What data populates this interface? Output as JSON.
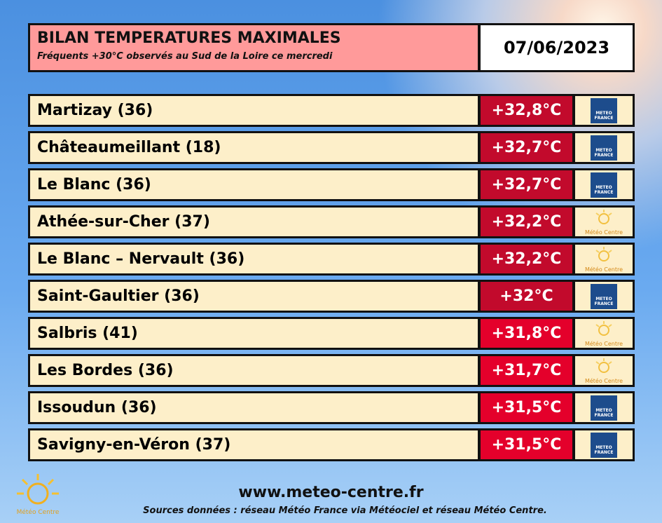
{
  "header": {
    "title": "BILAN TEMPERATURES MAXIMALES",
    "subtitle": "Fréquents +30°C observés au Sud de la Loire ce mercredi",
    "date": "07/06/2023"
  },
  "table": {
    "rows": [
      {
        "station": "Martizay (36)",
        "temperature": "+32,8°C",
        "source": "METEO FRANCE"
      },
      {
        "station": "Châteaumeillant (18)",
        "temperature": "+32,7°C",
        "source": "METEO FRANCE"
      },
      {
        "station": "Le Blanc (36)",
        "temperature": "+32,7°C",
        "source": "METEO FRANCE"
      },
      {
        "station": "Athée-sur-Cher (37)",
        "temperature": "+32,2°C",
        "source": "Météo Centre"
      },
      {
        "station": "Le Blanc – Nervault (36)",
        "temperature": "+32,2°C",
        "source": "Météo Centre"
      },
      {
        "station": "Saint-Gaultier (36)",
        "temperature": "+32°C",
        "source": "METEO FRANCE"
      },
      {
        "station": "Salbris (41)",
        "temperature": "+31,8°C",
        "source": "Météo Centre"
      },
      {
        "station": "Les Bordes (36)",
        "temperature": "+31,7°C",
        "source": "Météo Centre"
      },
      {
        "station": "Issoudun (36)",
        "temperature": "+31,5°C",
        "source": "METEO FRANCE"
      },
      {
        "station": "Savigny-en-Véron (37)",
        "temperature": "+31,5°C",
        "source": "METEO FRANCE"
      }
    ]
  },
  "footer": {
    "website": "www.meteo-centre.fr",
    "sources": "Sources données : réseau Météo France via Météociel et réseau Météo Centre.",
    "logo": "Météo Centre"
  }
}
